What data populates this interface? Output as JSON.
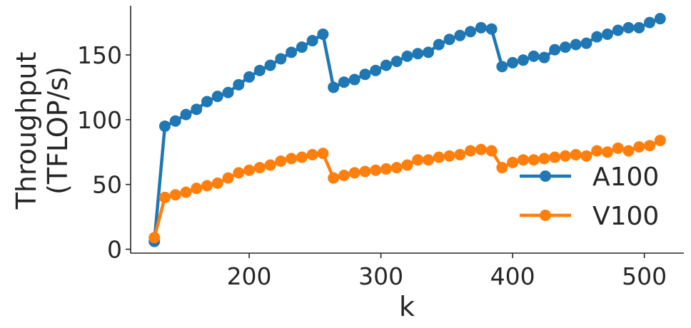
{
  "chart_data": {
    "type": "line",
    "xlabel": "k",
    "ylabel_lines": [
      "Throughput",
      "(TFLOP/s)"
    ],
    "xlim": [
      110,
      530
    ],
    "ylim": [
      -3,
      188
    ],
    "x_ticks": [
      200,
      300,
      400,
      500
    ],
    "y_ticks": [
      0,
      50,
      100,
      150
    ],
    "grid": false,
    "legend_position": "lower-right",
    "x": [
      128,
      136,
      144,
      152,
      160,
      168,
      176,
      184,
      192,
      200,
      208,
      216,
      224,
      232,
      240,
      248,
      256,
      264,
      272,
      280,
      288,
      296,
      304,
      312,
      320,
      328,
      336,
      344,
      352,
      360,
      368,
      376,
      384,
      392,
      400,
      408,
      416,
      424,
      432,
      440,
      448,
      456,
      464,
      472,
      480,
      488,
      496,
      504,
      512
    ],
    "series": [
      {
        "name": "A100",
        "color": "#1f77b4",
        "values": [
          6,
          95,
          99,
          104,
          108,
          114,
          118,
          121,
          127,
          133,
          138,
          142,
          147,
          152,
          156,
          161,
          166,
          125,
          129,
          131,
          135,
          138,
          142,
          145,
          149,
          151,
          152,
          158,
          162,
          165,
          168,
          171,
          170,
          141,
          144,
          146,
          149,
          148,
          154,
          156,
          158,
          159,
          164,
          166,
          169,
          171,
          171,
          175,
          178
        ]
      },
      {
        "name": "V100",
        "color": "#ff7f0e",
        "values": [
          9,
          40,
          42,
          44,
          47,
          49,
          51,
          55,
          59,
          61,
          63,
          65,
          68,
          70,
          71,
          73,
          74,
          55,
          57,
          59,
          60,
          61,
          62,
          63,
          65,
          69,
          69,
          71,
          72,
          73,
          76,
          77,
          76,
          63,
          67,
          69,
          69,
          70,
          71,
          72,
          73,
          72,
          76,
          75,
          78,
          76,
          79,
          80,
          84
        ]
      }
    ]
  }
}
